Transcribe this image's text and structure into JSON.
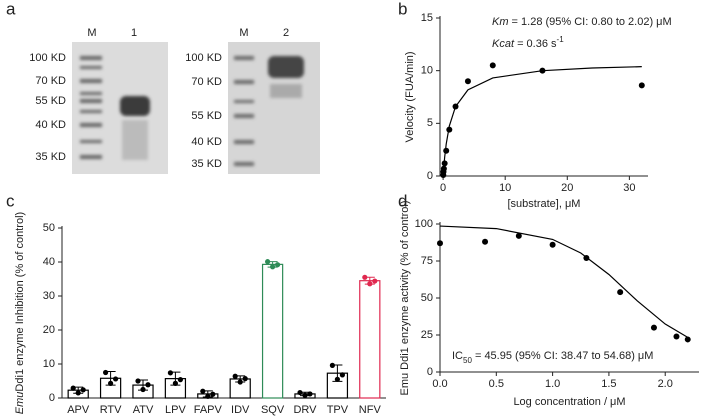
{
  "panel_labels": [
    "a",
    "b",
    "c",
    "d"
  ],
  "gel": {
    "left": {
      "lanes": [
        "M",
        "1"
      ],
      "markers": [
        "100 KD",
        "70 KD",
        "55 KD",
        "40 KD",
        "35 KD"
      ]
    },
    "right": {
      "lanes": [
        "M",
        "2"
      ],
      "markers": [
        "100 KD",
        "70 KD",
        "55 KD",
        "40 KD",
        "35 KD"
      ]
    }
  },
  "chart_data": [
    {
      "type": "scatter",
      "x_label": "[substrate], μM",
      "y_label": "Velocity (FUA/min)",
      "annotations": [
        [
          "Km",
          " = 1.28 (95% CI: 0.80 to 2.02) μM"
        ],
        [
          "Kcat",
          " = 0.36 s",
          "-1"
        ]
      ],
      "series": [
        {
          "color": "#000000",
          "x": [
            0.03,
            0.06,
            0.125,
            0.25,
            0.5,
            1,
            2,
            4,
            8,
            16,
            32
          ],
          "values": [
            0.1,
            0.4,
            0.7,
            1.2,
            2.4,
            4.4,
            6.6,
            9.0,
            10.5,
            10.0,
            8.6
          ]
        },
        {
          "color": "#000000",
          "style": "line",
          "x": [
            0,
            0.25,
            0.5,
            1,
            2,
            4,
            8,
            16,
            24,
            32
          ],
          "values": [
            0,
            1.77,
            3.03,
            4.74,
            6.59,
            8.18,
            9.31,
            10.0,
            10.25,
            10.38
          ]
        }
      ],
      "xlim": [
        -0.5,
        33
      ],
      "ylim": [
        0,
        15
      ],
      "xticks": [
        0,
        10,
        20,
        30
      ],
      "yticks": [
        0,
        5,
        10,
        15
      ]
    },
    {
      "type": "bar",
      "y_label": [
        "Emu",
        "Ddi1 enzyme Inhibition (% of control)"
      ],
      "categories": [
        "APV",
        "RTV",
        "ATV",
        "LPV",
        "FAPV",
        "IDV",
        "SQV",
        "DRV",
        "TPV",
        "NFV"
      ],
      "values": [
        2.3,
        5.8,
        3.8,
        5.7,
        1.2,
        5.6,
        39.3,
        1.2,
        7.3,
        34.5
      ],
      "errors": [
        0.9,
        2.0,
        1.5,
        1.9,
        0.9,
        0.9,
        0.8,
        0.5,
        2.4,
        1.0
      ],
      "points": [
        [
          2.9,
          1.5,
          2.4
        ],
        [
          7.5,
          4.3,
          5.6
        ],
        [
          5.0,
          2.5,
          3.9
        ],
        [
          7.4,
          4.3,
          5.4
        ],
        [
          2.0,
          0.5,
          1.1
        ],
        [
          6.4,
          4.7,
          5.7
        ],
        [
          40.1,
          38.6,
          39.2
        ],
        [
          1.6,
          0.8,
          1.2
        ],
        [
          9.6,
          5.5,
          6.8
        ],
        [
          35.5,
          33.6,
          34.4
        ]
      ],
      "colors": [
        "#000000",
        "#000000",
        "#000000",
        "#000000",
        "#000000",
        "#000000",
        "#2e8b57",
        "#000000",
        "#000000",
        "#e0284f"
      ],
      "ylim": [
        0,
        50
      ],
      "yticks": [
        0,
        10,
        20,
        30,
        40,
        50
      ]
    },
    {
      "type": "scatter",
      "x_label": "Log concentration / μM",
      "y_label": "Emu Ddi1 enzyme activity (% of control)",
      "annotations": [
        [
          "IC",
          "50",
          " = 45.95 (95% CI: 38.47 to 54.68) μM"
        ]
      ],
      "series": [
        {
          "color": "#000000",
          "x": [
            0,
            0.4,
            0.7,
            1.0,
            1.3,
            1.6,
            1.9,
            2.1,
            2.2
          ],
          "values": [
            87,
            88,
            92,
            86,
            77,
            54,
            30,
            24,
            22
          ]
        },
        {
          "color": "#000000",
          "style": "line",
          "x": [
            0,
            0.5,
            1.0,
            1.25,
            1.5,
            1.75,
            2.0,
            2.2
          ],
          "values": [
            98.6,
            96.9,
            89.6,
            80.4,
            65.9,
            48.2,
            32.4,
            23.4
          ]
        }
      ],
      "xlim": [
        0,
        2.3
      ],
      "ylim": [
        0,
        100
      ],
      "xticks": [
        {
          "value": 0,
          "label": "0.0"
        },
        0.5,
        {
          "value": 1,
          "label": "1.0"
        },
        1.5,
        {
          "value": 2,
          "label": "2.0"
        }
      ],
      "yticks": [
        0,
        25,
        50,
        75,
        100
      ]
    }
  ]
}
